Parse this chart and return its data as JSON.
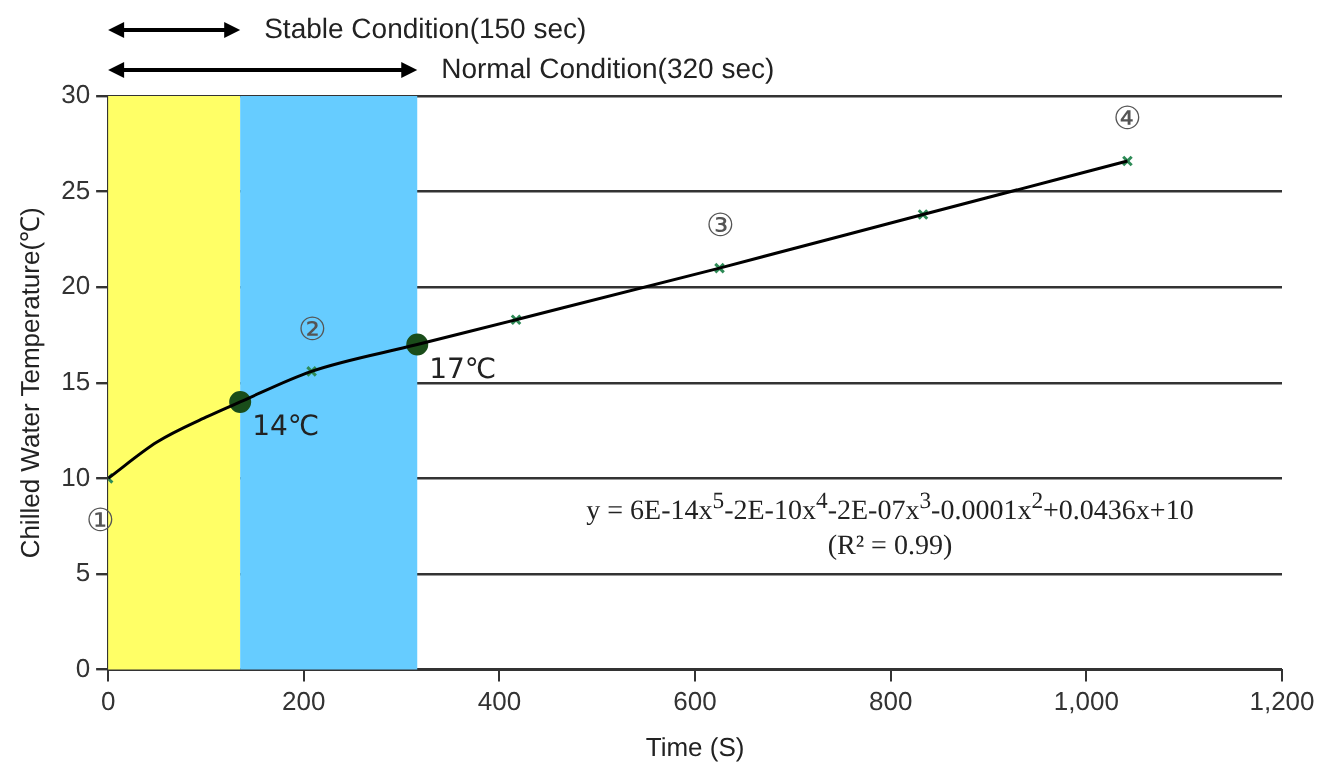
{
  "chart_data": {
    "type": "line",
    "xlabel": "Time (S)",
    "ylabel": "Chilled Water Temperature(℃)",
    "xlim": [
      0,
      1200
    ],
    "xticks": [
      0,
      200,
      400,
      600,
      800,
      {
        "value": 1000,
        "label": "1,000"
      },
      {
        "value": 1200,
        "label": "1,200"
      }
    ],
    "ylim": [
      0,
      30
    ],
    "yticks": [
      0,
      5,
      10,
      15,
      20,
      25,
      30
    ],
    "grid": "y",
    "legend": false,
    "bands": [
      {
        "axis": "x",
        "from": 0,
        "to": 135,
        "label": "Stable Condition(150 sec)",
        "color": "#ffff66"
      },
      {
        "axis": "x",
        "from": 135,
        "to": 316,
        "label": "Normal Condition(320 sec)",
        "color": "#66ccff"
      }
    ],
    "series": [
      {
        "type": "line",
        "color": "#000000",
        "marker": "none",
        "x": [
          0,
          50,
          100,
          135,
          208,
          316,
          417,
          625,
          833,
          1042
        ],
        "values": [
          10,
          11.9,
          13.2,
          14,
          15.6,
          17,
          18.3,
          21,
          23.8,
          26.6
        ]
      },
      {
        "type": "scatter",
        "color": "#2e8b57",
        "marker": "cross",
        "x": [
          0,
          208,
          417,
          625,
          833,
          1042
        ],
        "values": [
          10,
          15.6,
          18.3,
          21,
          23.8,
          26.6
        ]
      },
      {
        "type": "scatter",
        "color": "#1a4d1a",
        "marker": "circle",
        "x": [
          135,
          316
        ],
        "values": [
          14,
          17
        ],
        "value_labels": [
          "14℃",
          "17℃"
        ]
      }
    ],
    "annotations": [
      {
        "text": "①",
        "x": 0,
        "y": 10
      },
      {
        "text": "②",
        "x": 208,
        "y": 15.6
      },
      {
        "text": "③",
        "x": 625,
        "y": 21
      },
      {
        "text": "④",
        "x": 1042,
        "y": 26.6
      },
      "y = 6E-14x$^{5}$-2E-10x$^{4}$-2E-07x$^{3}$-0.0001x$^{2}$+0.0436x+10",
      "(R² = 0.99)"
    ]
  }
}
